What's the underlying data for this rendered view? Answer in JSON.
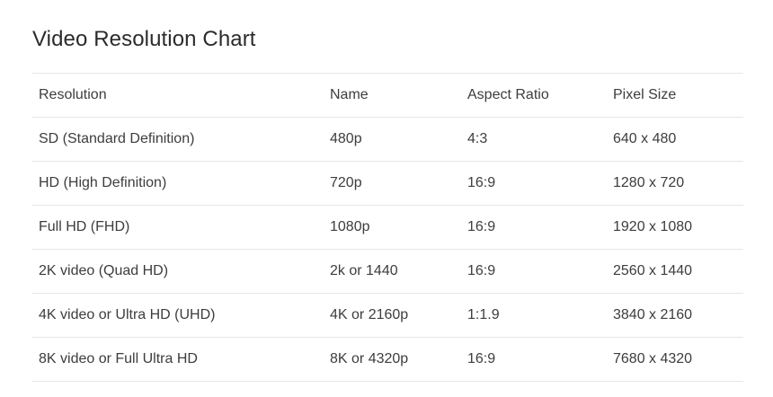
{
  "title": "Video Resolution Chart",
  "table": {
    "headers": [
      "Resolution",
      "Name",
      "Aspect Ratio",
      "Pixel Size"
    ],
    "rows": [
      [
        "SD (Standard Definition)",
        "480p",
        "4:3",
        "640 x 480"
      ],
      [
        "HD (High Definition)",
        "720p",
        "16:9",
        "1280 x 720"
      ],
      [
        "Full HD (FHD)",
        "1080p",
        "16:9",
        "1920 x 1080"
      ],
      [
        "2K video (Quad HD)",
        "2k or 1440",
        "16:9",
        "2560 x 1440"
      ],
      [
        "4K video or Ultra HD (UHD)",
        "4K or 2160p",
        "1:1.9",
        "3840 x 2160"
      ],
      [
        "8K video or Full Ultra HD",
        "8K or 4320p",
        "16:9",
        "7680 x 4320"
      ]
    ]
  }
}
